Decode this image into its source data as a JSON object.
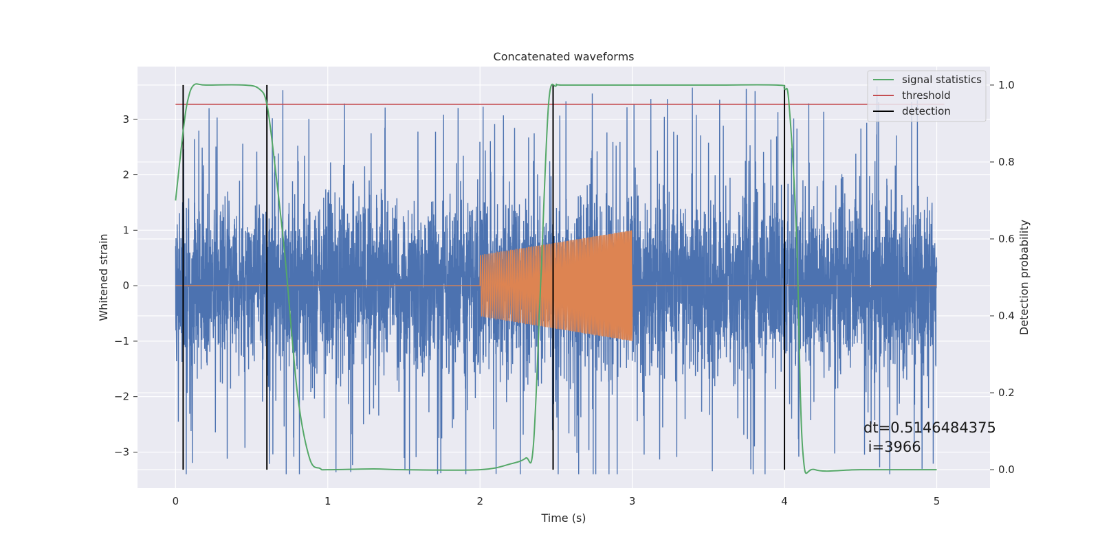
{
  "chart_data": {
    "type": "line",
    "title": "Concatenated waveforms",
    "xlabel": "Time (s)",
    "ylabel": "Whitened strain",
    "ylabel_right": "Detection probability",
    "xlim": [
      -0.25,
      5.35
    ],
    "ylim": [
      -3.65,
      3.95
    ],
    "ylim_right": [
      -0.048,
      1.048
    ],
    "x_ticks": [
      0,
      1,
      2,
      3,
      4,
      5
    ],
    "x_tick_labels": [
      "0",
      "1",
      "2",
      "3",
      "4",
      "5"
    ],
    "y_ticks": [
      -3,
      -2,
      -1,
      0,
      1,
      2,
      3
    ],
    "y_tick_labels": [
      "−3",
      "−2",
      "−1",
      "0",
      "1",
      "2",
      "3"
    ],
    "y_right_ticks": [
      0.0,
      0.2,
      0.4,
      0.6,
      0.8,
      1.0
    ],
    "y_right_tick_labels": [
      "0.0",
      "0.2",
      "0.4",
      "0.6",
      "0.8",
      "1.0"
    ],
    "grid": true,
    "legend_position": "top-right",
    "noise": {
      "x_range": [
        0,
        5
      ],
      "typical_amplitude": 1.7,
      "peak_amplitude": 3.6,
      "color": "#4c72b0"
    },
    "injected_signal": {
      "x_range": [
        2,
        3
      ],
      "start_amplitude": 0.55,
      "end_amplitude": 1.0,
      "color": "#dd8452"
    },
    "series": [
      {
        "name": "signal statistics",
        "axis": "right",
        "color": "#55a868",
        "x": [
          0.0,
          0.05,
          0.08,
          0.12,
          0.2,
          0.45,
          0.55,
          0.6,
          0.65,
          0.72,
          0.8,
          0.88,
          0.95,
          1.0,
          1.3,
          1.5,
          2.0,
          2.2,
          2.3,
          2.35,
          2.4,
          2.45,
          2.5,
          2.55,
          3.0,
          3.5,
          3.95,
          4.0,
          4.03,
          4.08,
          4.12,
          4.2,
          4.5,
          5.0
        ],
        "y": [
          0.7,
          0.88,
          0.96,
          1.0,
          1.0,
          1.0,
          0.99,
          0.95,
          0.8,
          0.55,
          0.2,
          0.03,
          0.003,
          0.0,
          0.002,
          0.0,
          0.0,
          0.015,
          0.03,
          0.06,
          0.5,
          0.95,
          0.998,
          1.0,
          1.0,
          1.0,
          1.0,
          0.99,
          0.95,
          0.6,
          0.05,
          0.0,
          0.0,
          0.0
        ]
      },
      {
        "name": "threshold",
        "axis": "right",
        "color": "#c44e52",
        "x": [
          0,
          5.05
        ],
        "y": [
          0.95,
          0.95
        ]
      },
      {
        "name": "detection",
        "axis": "right",
        "color": "#000000",
        "x": [
          0.05,
          0.6,
          2.48,
          4.0
        ],
        "y_range": [
          0,
          1
        ]
      }
    ],
    "annotation": {
      "line1": "dt=0.5146484375",
      "line2": " i=3966"
    }
  }
}
